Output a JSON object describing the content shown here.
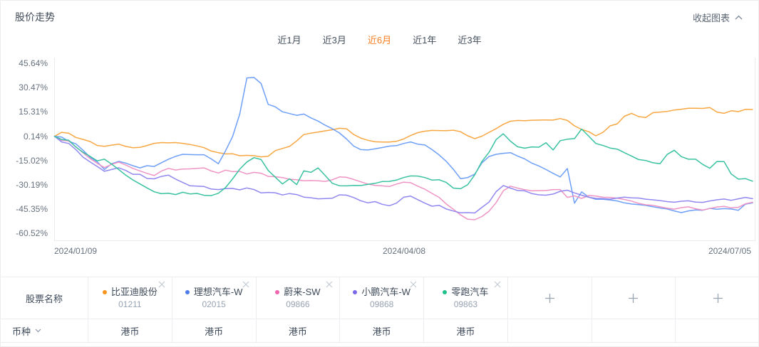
{
  "header": {
    "title": "股价走势",
    "collapse_label": "收起图表"
  },
  "range_tabs": {
    "active_color": "#f97e21",
    "items": [
      {
        "label": "近1月",
        "active": false
      },
      {
        "label": "近3月",
        "active": false
      },
      {
        "label": "近6月",
        "active": true
      },
      {
        "label": "近1年",
        "active": false
      },
      {
        "label": "近3年",
        "active": false
      }
    ]
  },
  "chart_data": {
    "type": "line",
    "title": "股价走势",
    "unit": "%",
    "grid": false,
    "legend_position": "table-below",
    "x_tick_labels": [
      "2024/01/09",
      "2024/04/08",
      "2024/07/05"
    ],
    "y_tick_labels": [
      "45.64%",
      "30.47%",
      "15.31%",
      "0.14%",
      "-15.02%",
      "-30.19%",
      "-45.35%",
      "-60.52%"
    ],
    "y_max": 45.64,
    "y_min": -60.52,
    "series": [
      {
        "name": "比亚迪股份",
        "code": "01211",
        "line_color": "#F7A742",
        "dot_color": "#F7941E",
        "values": [
          0.1,
          2.6,
          2.0,
          -0.6,
          -1.8,
          -3.2,
          -5.6,
          -6.1,
          -5.4,
          -4.8,
          -6.2,
          -7.0,
          -6.8,
          -5.6,
          -4.3,
          -3.8,
          -4.0,
          -3.8,
          -4.3,
          -5.0,
          -5.9,
          -7.0,
          -9.1,
          -10.1,
          -10.9,
          -10.8,
          -12.0,
          -11.8,
          -12.0,
          -12.7,
          -12.3,
          -8.8,
          -7.5,
          -6.2,
          -2.8,
          1.2,
          2.1,
          2.7,
          3.5,
          4.2,
          5.1,
          4.8,
          1.2,
          -1.0,
          -2.4,
          -3.3,
          -3.5,
          -3.5,
          -3.0,
          -1.6,
          0.6,
          2.4,
          3.3,
          3.8,
          3.7,
          3.6,
          3.9,
          3.0,
          0.4,
          -1.3,
          0.2,
          2.6,
          4.9,
          7.6,
          9.5,
          10.0,
          9.8,
          10.1,
          10.2,
          10.3,
          10.2,
          11.2,
          10.0,
          6.6,
          4.4,
          3.0,
          0.4,
          2.6,
          6.6,
          7.9,
          12.6,
          14.4,
          12.4,
          11.8,
          14.8,
          15.2,
          15.6,
          16.5,
          17.0,
          17.6,
          17.6,
          17.5,
          18.0,
          15.2,
          14.4,
          16.0,
          15.5,
          16.9,
          16.8
        ]
      },
      {
        "name": "理想汽车-W",
        "code": "02015",
        "line_color": "#6E9FF7",
        "dot_color": "#4D7BEC",
        "values": [
          0.1,
          -0.4,
          -3.0,
          -4.6,
          -8.6,
          -13.0,
          -15.8,
          -20.6,
          -17.0,
          -15.5,
          -16.6,
          -18.2,
          -19.6,
          -18.2,
          -18.7,
          -16.4,
          -14.2,
          -12.4,
          -11.1,
          -11.3,
          -11.4,
          -11.4,
          -14.0,
          -17.0,
          -9.0,
          0.0,
          14.0,
          36.5,
          36.8,
          33.0,
          20.0,
          18.5,
          15.4,
          14.3,
          13.2,
          14.0,
          11.6,
          9.6,
          7.0,
          4.8,
          2.2,
          -1.6,
          -6.0,
          -8.2,
          -8.4,
          -7.7,
          -6.9,
          -6.0,
          -5.7,
          -4.4,
          -3.4,
          -4.8,
          -5.3,
          -8.2,
          -11.5,
          -15.5,
          -20.5,
          -26.3,
          -25.6,
          -23.5,
          -16.5,
          -12.5,
          -11.1,
          -10.5,
          -10.1,
          -12.2,
          -14.0,
          -16.6,
          -18.4,
          -20.6,
          -23.0,
          -25.2,
          -20.0,
          -41.6,
          -34.6,
          -37.8,
          -39.2,
          -39.2,
          -39.6,
          -40.2,
          -41.4,
          -42.1,
          -42.5,
          -43.0,
          -43.8,
          -44.6,
          -45.2,
          -46.4,
          -47.5,
          -46.4,
          -45.8,
          -46.0,
          -44.8,
          -45.4,
          -45.0,
          -45.2,
          -46.0,
          -42.2,
          -41.4
        ]
      },
      {
        "name": "蔚来-SW",
        "code": "09866",
        "line_color": "#EE94C5",
        "dot_color": "#F065B0",
        "values": [
          0.1,
          -2.4,
          -2.8,
          -6.4,
          -10.2,
          -13.8,
          -16.8,
          -19.4,
          -17.4,
          -16.0,
          -17.8,
          -19.9,
          -21.5,
          -23.0,
          -24.4,
          -21.6,
          -19.9,
          -20.9,
          -20.3,
          -20.2,
          -19.9,
          -19.6,
          -21.5,
          -22.8,
          -21.0,
          -21.9,
          -21.8,
          -23.4,
          -22.4,
          -22.9,
          -24.9,
          -25.1,
          -25.6,
          -26.7,
          -27.0,
          -27.6,
          -27.5,
          -27.6,
          -28.0,
          -27.0,
          -25.2,
          -25.5,
          -26.8,
          -28.3,
          -29.7,
          -30.5,
          -30.8,
          -31.2,
          -29.7,
          -28.5,
          -28.8,
          -31.0,
          -32.9,
          -35.5,
          -38.0,
          -42.1,
          -45.4,
          -48.9,
          -51.6,
          -51.9,
          -49.9,
          -46.6,
          -41.2,
          -33.9,
          -31.0,
          -32.2,
          -33.2,
          -33.9,
          -33.8,
          -33.7,
          -33.1,
          -33.1,
          -38.0,
          -37.0,
          -38.6,
          -36.8,
          -37.2,
          -37.9,
          -38.0,
          -38.5,
          -39.3,
          -40.3,
          -41.7,
          -42.6,
          -42.9,
          -43.9,
          -44.7,
          -45.3,
          -44.4,
          -43.9,
          -45.1,
          -45.9,
          -44.9,
          -44.0,
          -43.6,
          -44.5,
          -44.2,
          -42.0,
          -41.0
        ]
      },
      {
        "name": "小鹏汽车-W",
        "code": "09868",
        "line_color": "#9087EF",
        "dot_color": "#7968EA",
        "values": [
          0.1,
          -3.4,
          -4.4,
          -8.2,
          -12.9,
          -15.9,
          -18.7,
          -21.7,
          -20.6,
          -19.5,
          -21.2,
          -23.6,
          -23.6,
          -26.2,
          -26.4,
          -24.9,
          -24.1,
          -26.6,
          -28.7,
          -30.7,
          -31.0,
          -31.2,
          -32.8,
          -33.1,
          -32.5,
          -32.4,
          -33.3,
          -32.1,
          -33.1,
          -35.2,
          -34.9,
          -35.1,
          -36.5,
          -35.6,
          -36.2,
          -37.8,
          -38.2,
          -38.9,
          -38.7,
          -38.5,
          -36.4,
          -36.6,
          -38.1,
          -40.1,
          -41.4,
          -40.6,
          -42.3,
          -43.2,
          -41.6,
          -37.9,
          -37.2,
          -39.4,
          -41.6,
          -43.5,
          -42.9,
          -45.2,
          -46.5,
          -47.6,
          -47.5,
          -47.7,
          -44.2,
          -40.9,
          -34.4,
          -30.6,
          -32.2,
          -33.7,
          -33.9,
          -35.6,
          -36.4,
          -36.6,
          -35.9,
          -34.2,
          -33.5,
          -35.2,
          -36.6,
          -37.9,
          -38.6,
          -38.7,
          -39.1,
          -38.4,
          -37.8,
          -38.3,
          -38.4,
          -39.1,
          -39.5,
          -40.0,
          -40.6,
          -41.0,
          -40.4,
          -40.1,
          -40.9,
          -41.1,
          -40.2,
          -39.5,
          -39.0,
          -39.8,
          -38.9,
          -38.0,
          -38.8
        ]
      },
      {
        "name": "零跑汽车",
        "code": "09863",
        "line_color": "#3AC2A0",
        "dot_color": "#1FC08C",
        "values": [
          0.1,
          -1.9,
          -2.4,
          -6.6,
          -9.9,
          -12.4,
          -15.2,
          -14.2,
          -17.2,
          -20.6,
          -24.1,
          -27.1,
          -29.6,
          -32.1,
          -34.5,
          -35.7,
          -35.4,
          -36.2,
          -34.8,
          -35.8,
          -35.5,
          -36.7,
          -36.9,
          -35.4,
          -31.9,
          -26.4,
          -20.4,
          -15.9,
          -13.2,
          -14.4,
          -21.2,
          -25.4,
          -29.6,
          -26.4,
          -30.0,
          -21.4,
          -22.4,
          -19.6,
          -24.4,
          -29.2,
          -30.7,
          -30.8,
          -30.5,
          -30.6,
          -29.9,
          -29.2,
          -28.1,
          -28.0,
          -27.2,
          -25.6,
          -24.6,
          -24.7,
          -25.6,
          -27.2,
          -27.0,
          -28.7,
          -32.2,
          -32.6,
          -30.1,
          -23.9,
          -15.6,
          -9.9,
          -1.9,
          1.7,
          -2.9,
          -6.4,
          -7.3,
          -6.5,
          -6.7,
          -3.9,
          -8.4,
          -2.6,
          -1.7,
          -1.3,
          4.6,
          0.2,
          -4.4,
          -5.6,
          -7.2,
          -7.9,
          -10.1,
          -12.2,
          -14.4,
          -15.0,
          -16.4,
          -17.0,
          -11.2,
          -8.6,
          -12.6,
          -14.2,
          -14.2,
          -17.4,
          -19.8,
          -15.6,
          -15.7,
          -23.4,
          -26.6,
          -26.3,
          -27.9
        ]
      }
    ]
  },
  "table": {
    "row1_label": "股票名称",
    "row2_label": "币种",
    "add_cells": 3,
    "stocks": [
      {
        "name": "比亚迪股份",
        "code": "01211",
        "currency": "港币",
        "color": "#F7941E"
      },
      {
        "name": "理想汽车-W",
        "code": "02015",
        "currency": "港币",
        "color": "#4D7BEC"
      },
      {
        "name": "蔚来-SW",
        "code": "09866",
        "currency": "港币",
        "color": "#F065B0"
      },
      {
        "name": "小鹏汽车-W",
        "code": "09868",
        "currency": "港币",
        "color": "#7968EA"
      },
      {
        "name": "零跑汽车",
        "code": "09863",
        "currency": "港币",
        "color": "#1FC08C"
      }
    ]
  }
}
